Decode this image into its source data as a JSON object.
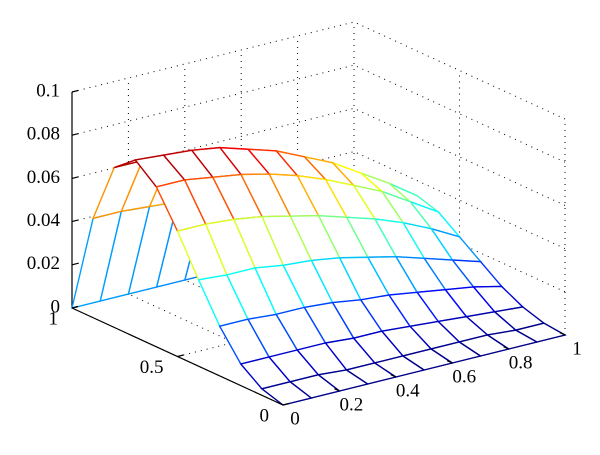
{
  "chart_data": {
    "type": "surface",
    "colormap": "jet",
    "grid": true,
    "x": [
      0,
      0.1,
      0.2,
      0.3,
      0.4,
      0.5,
      0.6,
      0.7,
      0.8,
      0.9,
      1
    ],
    "y": [
      0,
      0.1,
      0.2,
      0.3,
      0.4,
      0.5,
      0.6,
      0.7,
      0.8,
      0.9,
      1
    ],
    "z": [
      [
        0,
        0,
        0,
        0,
        0,
        0,
        0,
        0,
        0,
        0,
        0
      ],
      [
        0.003,
        0.003,
        0.003,
        0.002,
        0.002,
        0.002,
        0.002,
        0.002,
        0.002,
        0.001,
        0.001
      ],
      [
        0.01,
        0.01,
        0.01,
        0.01,
        0.009,
        0.009,
        0.008,
        0.007,
        0.006,
        0.005,
        0.004
      ],
      [
        0.023,
        0.023,
        0.022,
        0.022,
        0.021,
        0.019,
        0.018,
        0.016,
        0.014,
        0.012,
        0.009
      ],
      [
        0.04,
        0.039,
        0.039,
        0.037,
        0.036,
        0.034,
        0.031,
        0.028,
        0.024,
        0.02,
        0.016
      ],
      [
        0.058,
        0.058,
        0.057,
        0.055,
        0.052,
        0.049,
        0.045,
        0.041,
        0.036,
        0.03,
        0.023
      ],
      [
        0.074,
        0.074,
        0.072,
        0.07,
        0.067,
        0.063,
        0.058,
        0.052,
        0.046,
        0.038,
        0.03
      ],
      [
        0.082,
        0.081,
        0.08,
        0.078,
        0.074,
        0.07,
        0.064,
        0.058,
        0.05,
        0.042,
        0.033
      ],
      [
        0.074,
        0.074,
        0.072,
        0.07,
        0.067,
        0.063,
        0.058,
        0.052,
        0.046,
        0.038,
        0.03
      ],
      [
        0.046,
        0.046,
        0.045,
        0.044,
        0.042,
        0.039,
        0.036,
        0.033,
        0.028,
        0.024,
        0.018
      ],
      [
        0,
        0,
        0,
        0,
        0,
        0,
        0,
        0,
        0,
        0,
        0
      ]
    ],
    "xlim": [
      0,
      1
    ],
    "xticks": [
      0,
      0.2,
      0.4,
      0.6,
      0.8,
      1
    ],
    "ylim": [
      0,
      1
    ],
    "yticks": [
      0,
      0.5,
      1
    ],
    "zlim": [
      0,
      0.1
    ],
    "zticks": [
      0,
      0.02,
      0.04,
      0.06,
      0.08,
      0.1
    ]
  }
}
